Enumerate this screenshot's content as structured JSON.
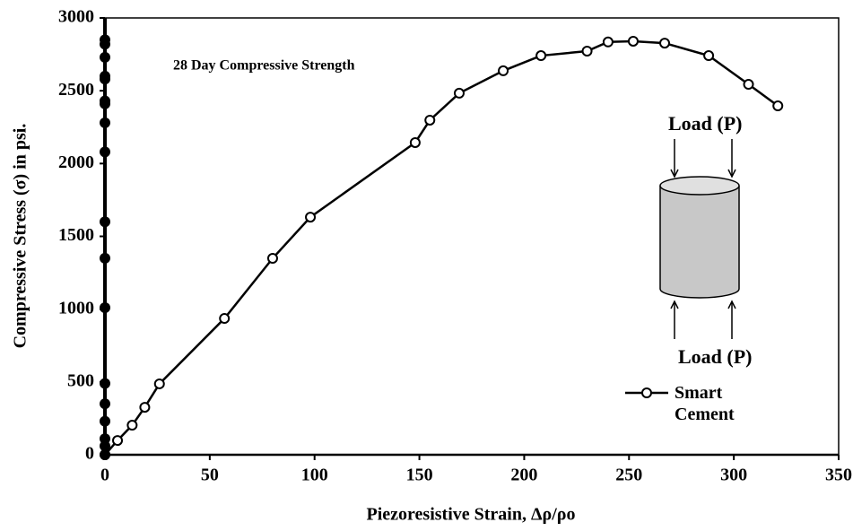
{
  "chart_data": {
    "type": "line",
    "annotation": "28 Day Compressive Strength",
    "load_label_top": "Load (P)",
    "load_label_bottom": "Load (P)",
    "x_label": "Piezoresistive Strain,  Δρ/ρo",
    "y_label": "Compressive Stress (σ) in psi.",
    "xlim": [
      0,
      350
    ],
    "xticks": [
      0,
      50,
      100,
      150,
      200,
      250,
      300,
      350
    ],
    "ylim": [
      0,
      3000
    ],
    "yticks": [
      0,
      500,
      1000,
      1500,
      2000,
      2500,
      3000
    ],
    "grid": false,
    "legend": "lower right",
    "series": [
      {
        "name": "Smart Cement",
        "color": "#000000",
        "marker": "open",
        "line": true,
        "x": [
          0,
          6,
          13,
          19,
          26,
          57,
          80,
          98,
          148,
          155,
          169,
          190,
          208,
          230,
          240,
          252,
          267,
          288,
          307,
          321
        ],
        "values": [
          0,
          98,
          203,
          326,
          487,
          936,
          1349,
          1632,
          2144,
          2298,
          2483,
          2637,
          2741,
          2772,
          2835,
          2840,
          2827,
          2741,
          2544,
          2396
        ]
      },
      {
        "color": "#000000",
        "marker": "filled",
        "line": false,
        "x": [
          0,
          0,
          0,
          0,
          0,
          0,
          0,
          0,
          0,
          0,
          0,
          0,
          0,
          0,
          0,
          0,
          0,
          0
        ],
        "values": [
          2850,
          2820,
          2730,
          2600,
          2580,
          2430,
          2410,
          2280,
          2080,
          1600,
          1350,
          1010,
          490,
          350,
          230,
          110,
          60,
          0
        ]
      }
    ]
  }
}
